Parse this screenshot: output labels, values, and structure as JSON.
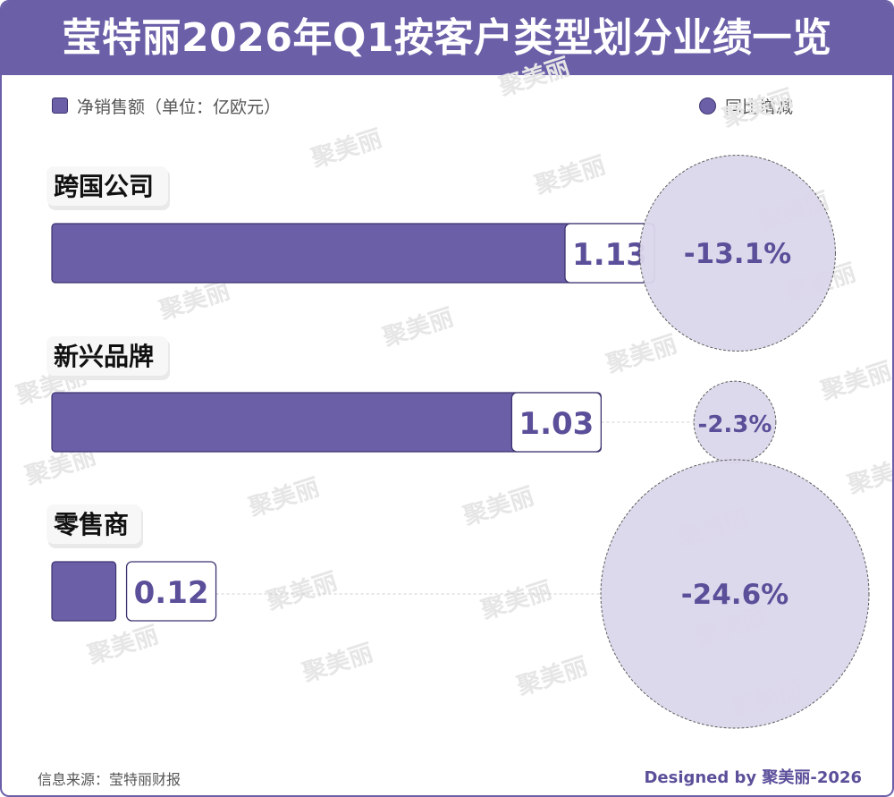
{
  "header": {
    "title": "莹特丽2026年Q1按客户类型划分业绩一览"
  },
  "legend": {
    "bar_label": "净销售额（单位：亿欧元）",
    "circle_label": "同比增减"
  },
  "chart_data": {
    "type": "bar",
    "title": "莹特丽2026年Q1按客户类型划分业绩一览",
    "categories": [
      "跨国公司",
      "新兴品牌",
      "零售商"
    ],
    "series": [
      {
        "name": "净销售额（单位：亿欧元）",
        "values": [
          1.13,
          1.03,
          0.12
        ]
      },
      {
        "name": "同比增减",
        "values": [
          -13.1,
          -2.3,
          -24.6
        ]
      }
    ],
    "value_labels": [
      "1.13",
      "1.03",
      "0.12"
    ],
    "change_labels": [
      "-13.1%",
      "-2.3%",
      "-24.6%"
    ],
    "orientation": "horizontal",
    "legend_position": "top",
    "colors": {
      "bar": "#6b5fa8",
      "circle": "#dcd7ec",
      "text": "#5b4f9a"
    }
  },
  "watermark": {
    "text": "聚美丽"
  },
  "footer": {
    "source": "信息来源：莹特丽财报",
    "credit": "Designed by 聚美丽-2026"
  }
}
